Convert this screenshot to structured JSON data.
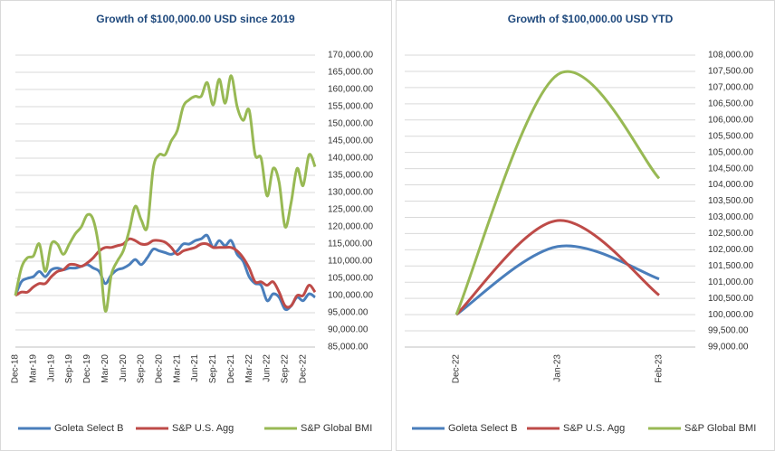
{
  "chart_data": [
    {
      "type": "line",
      "title": "Growth of $100,000.00 USD since 2019",
      "categories": [
        "Dec-18",
        null,
        null,
        "Mar-19",
        null,
        null,
        "Jun-19",
        null,
        null,
        "Sep-19",
        null,
        null,
        "Dec-19",
        null,
        null,
        "Mar-20",
        null,
        null,
        "Jun-20",
        null,
        null,
        "Sep-20",
        null,
        null,
        "Dec-20",
        null,
        null,
        "Mar-21",
        null,
        null,
        "Jun-21",
        null,
        null,
        "Sep-21",
        null,
        null,
        "Dec-21",
        null,
        null,
        "Mar-22",
        null,
        null,
        "Jun-22",
        null,
        null,
        "Sep-22",
        null,
        null,
        "Dec-22",
        null,
        null
      ],
      "series": [
        {
          "name": "Goleta Select B",
          "color": "#4a7ebb",
          "values": [
            100000,
            104000,
            105000,
            105500,
            107000,
            105500,
            107500,
            108000,
            107500,
            108000,
            108000,
            108500,
            109000,
            108000,
            107000,
            103500,
            106000,
            107500,
            108000,
            109000,
            110500,
            109000,
            111000,
            113500,
            113000,
            112500,
            112000,
            113000,
            115000,
            115000,
            116000,
            116500,
            117500,
            114000,
            116000,
            114500,
            116000,
            112000,
            110000,
            105500,
            103500,
            103000,
            98500,
            100500,
            99500,
            96000,
            97000,
            99500,
            98500,
            100500,
            99500
          ]
        },
        {
          "name": "S&P U.S. Agg",
          "color": "#be4b48",
          "values": [
            100000,
            101000,
            101000,
            102500,
            103500,
            103500,
            105500,
            107000,
            107500,
            109000,
            109000,
            108500,
            109500,
            111000,
            113000,
            114000,
            114000,
            114500,
            115000,
            116500,
            116000,
            115000,
            115000,
            116000,
            116000,
            115500,
            114000,
            112000,
            113000,
            113500,
            114000,
            115000,
            115000,
            114000,
            114000,
            114000,
            114000,
            113000,
            111000,
            108000,
            104000,
            104000,
            103000,
            104000,
            101000,
            97000,
            97000,
            100000,
            100000,
            103000,
            101000
          ]
        },
        {
          "name": "S&P Global BMI",
          "color": "#98b954",
          "values": [
            100000,
            108000,
            111000,
            111500,
            115000,
            107000,
            115000,
            115000,
            112000,
            115000,
            118000,
            120000,
            123500,
            122000,
            113000,
            95500,
            106000,
            110000,
            113000,
            119000,
            126000,
            122000,
            120000,
            137000,
            141000,
            141000,
            145000,
            148000,
            155000,
            157000,
            158000,
            158000,
            162000,
            155500,
            163000,
            156000,
            164000,
            155000,
            151000,
            154000,
            141000,
            140000,
            129000,
            137000,
            133000,
            120000,
            127000,
            137000,
            132000,
            141000,
            137500
          ]
        }
      ],
      "ylim": [
        85000,
        170000
      ],
      "yticks": [
        {
          "value": 85000,
          "label": "85,000.00"
        },
        {
          "value": 90000,
          "label": "90,000.00"
        },
        {
          "value": 95000,
          "label": "95,000.00"
        },
        {
          "value": 100000,
          "label": "100,000.00"
        },
        {
          "value": 105000,
          "label": "105,000.00"
        },
        {
          "value": 110000,
          "label": "110,000.00"
        },
        {
          "value": 115000,
          "label": "115,000.00"
        },
        {
          "value": 120000,
          "label": "120,000.00"
        },
        {
          "value": 125000,
          "label": "125,000.00"
        },
        {
          "value": 130000,
          "label": "130,000.00"
        },
        {
          "value": 135000,
          "label": "135,000.00"
        },
        {
          "value": 140000,
          "label": "140,000.00"
        },
        {
          "value": 145000,
          "label": "145,000.00"
        },
        {
          "value": 150000,
          "label": "150,000.00"
        },
        {
          "value": 155000,
          "label": "155,000.00"
        },
        {
          "value": 160000,
          "label": "160,000.00"
        },
        {
          "value": 165000,
          "label": "165,000.00"
        },
        {
          "value": 170000,
          "label": "170,000.00"
        }
      ],
      "grid": true
    },
    {
      "type": "line",
      "title": "Growth of $100,000.00 USD YTD",
      "categories": [
        "Dec-22",
        "Jan-23",
        "Feb-23"
      ],
      "series": [
        {
          "name": "Goleta Select B",
          "color": "#4a7ebb",
          "values": [
            100000,
            102100,
            101100
          ]
        },
        {
          "name": "S&P U.S. Agg",
          "color": "#be4b48",
          "values": [
            100000,
            102900,
            100600
          ]
        },
        {
          "name": "S&P Global BMI",
          "color": "#98b954",
          "values": [
            100000,
            107400,
            104200
          ]
        }
      ],
      "ylim": [
        99000,
        108000
      ],
      "yticks": [
        {
          "value": 99000,
          "label": "99,000.00"
        },
        {
          "value": 99500,
          "label": "99,500.00"
        },
        {
          "value": 100000,
          "label": "100,000.00"
        },
        {
          "value": 100500,
          "label": "100,500.00"
        },
        {
          "value": 101000,
          "label": "101,000.00"
        },
        {
          "value": 101500,
          "label": "101,500.00"
        },
        {
          "value": 102000,
          "label": "102,000.00"
        },
        {
          "value": 102500,
          "label": "102,500.00"
        },
        {
          "value": 103000,
          "label": "103,000.00"
        },
        {
          "value": 103500,
          "label": "103,500.00"
        },
        {
          "value": 104000,
          "label": "104,000.00"
        },
        {
          "value": 104500,
          "label": "104,500.00"
        },
        {
          "value": 105000,
          "label": "105,000.00"
        },
        {
          "value": 105500,
          "label": "105,500.00"
        },
        {
          "value": 106000,
          "label": "106,000.00"
        },
        {
          "value": 106500,
          "label": "106,500.00"
        },
        {
          "value": 107000,
          "label": "107,000.00"
        },
        {
          "value": 107500,
          "label": "107,500.00"
        },
        {
          "value": 108000,
          "label": "108,000.00"
        }
      ],
      "grid": true
    }
  ]
}
